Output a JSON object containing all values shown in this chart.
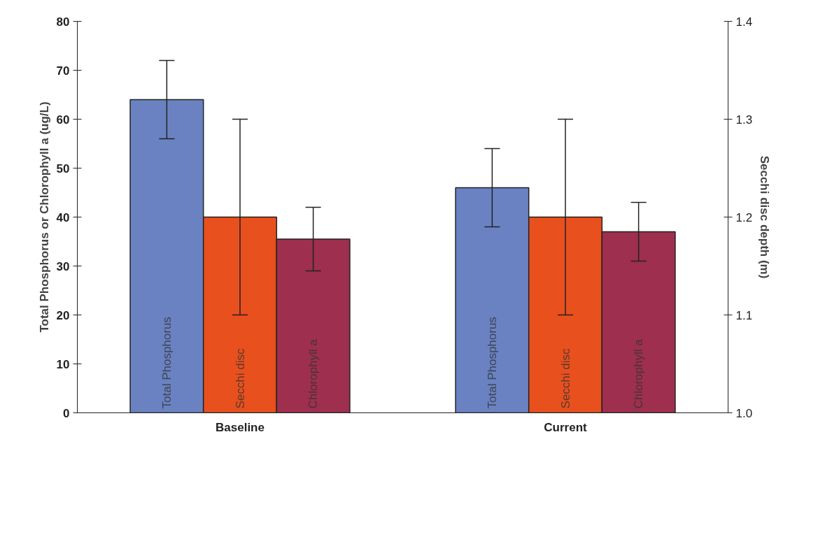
{
  "chart_data": {
    "type": "bar",
    "ylabel": "Total Phosphorus or Chlorophyll a (ug/L)",
    "y2label": "Secchi disc depth (m)",
    "categories": [
      "Baseline",
      "Current"
    ],
    "series": [
      {
        "name": "Total Phosphorus",
        "color": "#6a82c2",
        "values": [
          64,
          46
        ],
        "errors": [
          8,
          8
        ]
      },
      {
        "name": "Secchi disc",
        "color": "#e8501e",
        "values": [
          1.2,
          1.2
        ],
        "errors": [
          0.1,
          0.1
        ],
        "axis": "y2"
      },
      {
        "name": "Chlorophyll a",
        "color": "#9e2f4f",
        "values": [
          35.5,
          37
        ],
        "errors": [
          [
            29,
            42
          ],
          [
            31,
            43
          ]
        ]
      }
    ],
    "ylim": [
      0,
      80
    ],
    "yticks": [
      0,
      10,
      20,
      30,
      40,
      50,
      60,
      70,
      80
    ],
    "y2lim": [
      1.0,
      1.4
    ],
    "y2ticks": [
      {
        "value": 1.0,
        "label": "1.0"
      },
      {
        "value": 1.1,
        "label": "1.1"
      },
      {
        "value": 1.2,
        "label": "1.2"
      },
      {
        "value": 1.3,
        "label": "1.3"
      },
      {
        "value": 1.4,
        "label": "1.4"
      }
    ],
    "grid": false
  }
}
